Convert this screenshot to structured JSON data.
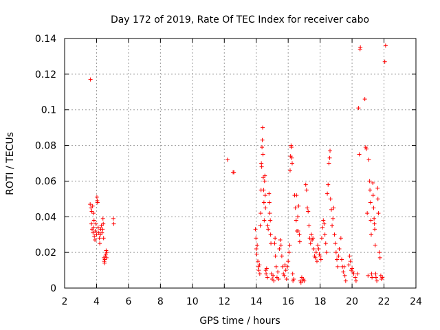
{
  "chart_data": {
    "type": "scatter",
    "title": "Day 172 of 2019, Rate Of TEC Index for receiver cabo",
    "xlabel": "GPS time / hours",
    "ylabel": "ROTI / TECUs",
    "xlim": [
      2,
      24
    ],
    "ylim": [
      0,
      0.14
    ],
    "xticks": [
      2,
      4,
      6,
      8,
      10,
      12,
      14,
      16,
      18,
      20,
      22,
      24
    ],
    "yticks": [
      0,
      0.02,
      0.04,
      0.06,
      0.08,
      0.1,
      0.12,
      0.14
    ],
    "xtick_labels": [
      "2",
      "4",
      "6",
      "8",
      "10",
      "12",
      "14",
      "16",
      "18",
      "20",
      "22",
      "24"
    ],
    "ytick_labels": [
      "0",
      "0.02",
      "0.04",
      "0.06",
      "0.08",
      "0.1",
      "0.12",
      "0.14"
    ],
    "grid": true,
    "marker": "+",
    "series": [
      {
        "name": "ROTI",
        "color": "#ff0000",
        "points": [
          [
            3.62,
            0.117
          ],
          [
            3.6,
            0.047
          ],
          [
            3.65,
            0.045
          ],
          [
            3.7,
            0.043
          ],
          [
            3.75,
            0.046
          ],
          [
            3.8,
            0.042
          ],
          [
            3.68,
            0.036
          ],
          [
            3.72,
            0.033
          ],
          [
            3.78,
            0.031
          ],
          [
            3.82,
            0.034
          ],
          [
            3.86,
            0.029
          ],
          [
            3.9,
            0.027
          ],
          [
            3.84,
            0.038
          ],
          [
            3.92,
            0.032
          ],
          [
            3.96,
            0.036
          ],
          [
            4.0,
            0.03
          ],
          [
            4.02,
            0.051
          ],
          [
            4.04,
            0.049
          ],
          [
            4.06,
            0.048
          ],
          [
            4.1,
            0.034
          ],
          [
            4.14,
            0.031
          ],
          [
            4.18,
            0.028
          ],
          [
            4.2,
            0.025
          ],
          [
            4.24,
            0.03
          ],
          [
            4.26,
            0.033
          ],
          [
            4.3,
            0.035
          ],
          [
            4.34,
            0.031
          ],
          [
            4.38,
            0.033
          ],
          [
            4.4,
            0.039
          ],
          [
            4.42,
            0.036
          ],
          [
            4.44,
            0.028
          ],
          [
            4.46,
            0.017
          ],
          [
            4.48,
            0.015
          ],
          [
            4.5,
            0.014
          ],
          [
            4.52,
            0.016
          ],
          [
            4.55,
            0.018
          ],
          [
            4.58,
            0.019
          ],
          [
            4.6,
            0.021
          ],
          [
            4.62,
            0.017
          ],
          [
            4.64,
            0.02
          ],
          [
            5.05,
            0.039
          ],
          [
            5.08,
            0.036
          ],
          [
            12.2,
            0.072
          ],
          [
            12.55,
            0.065
          ],
          [
            12.6,
            0.065
          ],
          [
            13.95,
            0.033
          ],
          [
            13.98,
            0.028
          ],
          [
            14.0,
            0.022
          ],
          [
            14.03,
            0.019
          ],
          [
            14.06,
            0.024
          ],
          [
            14.1,
            0.015
          ],
          [
            14.13,
            0.012
          ],
          [
            14.16,
            0.01
          ],
          [
            14.2,
            0.013
          ],
          [
            14.22,
            0.008
          ],
          [
            14.25,
            0.035
          ],
          [
            14.28,
            0.042
          ],
          [
            14.3,
            0.055
          ],
          [
            14.32,
            0.07
          ],
          [
            14.34,
            0.068
          ],
          [
            14.36,
            0.079
          ],
          [
            14.38,
            0.083
          ],
          [
            14.4,
            0.09
          ],
          [
            14.42,
            0.075
          ],
          [
            14.44,
            0.062
          ],
          [
            14.46,
            0.055
          ],
          [
            14.48,
            0.048
          ],
          [
            14.5,
            0.038
          ],
          [
            14.52,
            0.06
          ],
          [
            14.54,
            0.063
          ],
          [
            14.56,
            0.052
          ],
          [
            14.58,
            0.045
          ],
          [
            14.6,
            0.01
          ],
          [
            14.62,
            0.008
          ],
          [
            14.65,
            0.011
          ],
          [
            14.7,
            0.006
          ],
          [
            14.72,
            0.035
          ],
          [
            14.75,
            0.033
          ],
          [
            14.8,
            0.053
          ],
          [
            14.82,
            0.048
          ],
          [
            14.85,
            0.042
          ],
          [
            14.88,
            0.038
          ],
          [
            14.9,
            0.03
          ],
          [
            14.92,
            0.025
          ],
          [
            14.95,
            0.008
          ],
          [
            15.0,
            0.005
          ],
          [
            15.05,
            0.007
          ],
          [
            15.1,
            0.004
          ],
          [
            15.15,
            0.025
          ],
          [
            15.18,
            0.028
          ],
          [
            15.2,
            0.018
          ],
          [
            15.25,
            0.012
          ],
          [
            15.3,
            0.006
          ],
          [
            15.35,
            0.009
          ],
          [
            15.4,
            0.005
          ],
          [
            15.45,
            0.022
          ],
          [
            15.5,
            0.027
          ],
          [
            15.55,
            0.024
          ],
          [
            15.6,
            0.018
          ],
          [
            15.65,
            0.012
          ],
          [
            15.7,
            0.008
          ],
          [
            15.75,
            0.007
          ],
          [
            15.8,
            0.013
          ],
          [
            15.85,
            0.01
          ],
          [
            15.9,
            0.005
          ],
          [
            15.95,
            0.012
          ],
          [
            16.0,
            0.015
          ],
          [
            16.05,
            0.02
          ],
          [
            16.1,
            0.024
          ],
          [
            16.12,
            0.066
          ],
          [
            16.15,
            0.074
          ],
          [
            16.18,
            0.08
          ],
          [
            16.2,
            0.079
          ],
          [
            16.22,
            0.073
          ],
          [
            16.25,
            0.07
          ],
          [
            16.28,
            0.008
          ],
          [
            16.3,
            0.004
          ],
          [
            16.35,
            0.005
          ],
          [
            16.4,
            0.052
          ],
          [
            16.45,
            0.045
          ],
          [
            16.5,
            0.038
          ],
          [
            16.52,
            0.052
          ],
          [
            16.55,
            0.032
          ],
          [
            16.6,
            0.04
          ],
          [
            16.62,
            0.032
          ],
          [
            16.65,
            0.046
          ],
          [
            16.7,
            0.03
          ],
          [
            16.72,
            0.026
          ],
          [
            16.75,
            0.004
          ],
          [
            16.8,
            0.003
          ],
          [
            16.85,
            0.006
          ],
          [
            16.9,
            0.004
          ],
          [
            16.95,
            0.005
          ],
          [
            17.0,
            0.004
          ],
          [
            17.1,
            0.058
          ],
          [
            17.15,
            0.055
          ],
          [
            17.2,
            0.045
          ],
          [
            17.25,
            0.043
          ],
          [
            17.3,
            0.035
          ],
          [
            17.35,
            0.028
          ],
          [
            17.4,
            0.025
          ],
          [
            17.45,
            0.03
          ],
          [
            17.5,
            0.027
          ],
          [
            17.55,
            0.028
          ],
          [
            17.6,
            0.022
          ],
          [
            17.65,
            0.018
          ],
          [
            17.7,
            0.017
          ],
          [
            17.75,
            0.02
          ],
          [
            17.8,
            0.015
          ],
          [
            17.85,
            0.024
          ],
          [
            17.9,
            0.022
          ],
          [
            17.95,
            0.019
          ],
          [
            18.0,
            0.018
          ],
          [
            18.05,
            0.016
          ],
          [
            18.1,
            0.028
          ],
          [
            18.15,
            0.034
          ],
          [
            18.2,
            0.038
          ],
          [
            18.25,
            0.036
          ],
          [
            18.3,
            0.03
          ],
          [
            18.35,
            0.025
          ],
          [
            18.4,
            0.02
          ],
          [
            18.45,
            0.053
          ],
          [
            18.5,
            0.058
          ],
          [
            18.55,
            0.07
          ],
          [
            18.6,
            0.073
          ],
          [
            18.62,
            0.077
          ],
          [
            18.65,
            0.05
          ],
          [
            18.7,
            0.044
          ],
          [
            18.75,
            0.035
          ],
          [
            18.8,
            0.039
          ],
          [
            18.85,
            0.045
          ],
          [
            18.9,
            0.03
          ],
          [
            18.95,
            0.025
          ],
          [
            19.0,
            0.02
          ],
          [
            19.05,
            0.016
          ],
          [
            19.1,
            0.012
          ],
          [
            19.15,
            0.018
          ],
          [
            19.2,
            0.022
          ],
          [
            19.3,
            0.028
          ],
          [
            19.35,
            0.016
          ],
          [
            19.4,
            0.012
          ],
          [
            19.45,
            0.009
          ],
          [
            19.5,
            0.012
          ],
          [
            19.55,
            0.007
          ],
          [
            19.6,
            0.004
          ],
          [
            19.8,
            0.013
          ],
          [
            19.85,
            0.018
          ],
          [
            19.9,
            0.015
          ],
          [
            19.95,
            0.01
          ],
          [
            20.0,
            0.011
          ],
          [
            20.05,
            0.009
          ],
          [
            20.1,
            0.008
          ],
          [
            20.2,
            0.006
          ],
          [
            20.25,
            0.004
          ],
          [
            20.35,
            0.008
          ],
          [
            20.4,
            0.101
          ],
          [
            20.45,
            0.075
          ],
          [
            20.5,
            0.134
          ],
          [
            20.52,
            0.135
          ],
          [
            20.8,
            0.106
          ],
          [
            20.85,
            0.079
          ],
          [
            20.9,
            0.078
          ],
          [
            20.95,
            0.042
          ],
          [
            21.0,
            0.007
          ],
          [
            21.05,
            0.072
          ],
          [
            21.1,
            0.06
          ],
          [
            21.12,
            0.055
          ],
          [
            21.15,
            0.048
          ],
          [
            21.18,
            0.038
          ],
          [
            21.2,
            0.03
          ],
          [
            21.22,
            0.008
          ],
          [
            21.25,
            0.006
          ],
          [
            21.3,
            0.059
          ],
          [
            21.32,
            0.052
          ],
          [
            21.35,
            0.045
          ],
          [
            21.38,
            0.039
          ],
          [
            21.4,
            0.036
          ],
          [
            21.42,
            0.033
          ],
          [
            21.45,
            0.024
          ],
          [
            21.48,
            0.008
          ],
          [
            21.5,
            0.006
          ],
          [
            21.55,
            0.004
          ],
          [
            21.6,
            0.056
          ],
          [
            21.62,
            0.05
          ],
          [
            21.65,
            0.042
          ],
          [
            21.7,
            0.02
          ],
          [
            21.75,
            0.017
          ],
          [
            21.8,
            0.007
          ],
          [
            21.85,
            0.005
          ],
          [
            21.9,
            0.006
          ],
          [
            22.1,
            0.136
          ],
          [
            22.05,
            0.127
          ]
        ]
      }
    ]
  }
}
